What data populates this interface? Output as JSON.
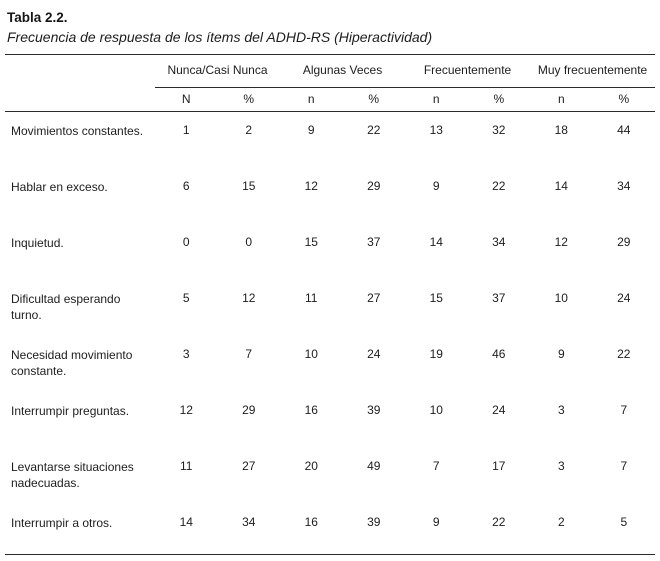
{
  "page": {
    "title": "Tabla 2.2.",
    "subtitle": "Frecuencia de respuesta de los ítems del ADHD-RS (Hiperactividad)"
  },
  "table": {
    "column_groups": [
      {
        "label": "Nunca/Casi Nunca",
        "sub": [
          "N",
          "%"
        ]
      },
      {
        "label": "Algunas Veces",
        "sub": [
          "n",
          "%"
        ]
      },
      {
        "label": "Frecuentemente",
        "sub": [
          "n",
          "%"
        ]
      },
      {
        "label": "Muy frecuentemente",
        "sub": [
          "n",
          "%"
        ]
      }
    ],
    "rows": [
      {
        "label": "Movimientos constantes.",
        "values": [
          1,
          2,
          9,
          22,
          13,
          32,
          18,
          44
        ]
      },
      {
        "label": "Hablar en exceso.",
        "values": [
          6,
          15,
          12,
          29,
          9,
          22,
          14,
          34
        ]
      },
      {
        "label": "Inquietud.",
        "values": [
          0,
          0,
          15,
          37,
          14,
          34,
          12,
          29
        ]
      },
      {
        "label": "Dificultad esperando turno.",
        "values": [
          5,
          12,
          11,
          27,
          15,
          37,
          10,
          24
        ]
      },
      {
        "label": "Necesidad movimiento constante.",
        "values": [
          3,
          7,
          10,
          24,
          19,
          46,
          9,
          22
        ]
      },
      {
        "label": "Interrumpir preguntas.",
        "values": [
          12,
          29,
          16,
          39,
          10,
          24,
          3,
          7
        ]
      },
      {
        "label": "Levantarse situaciones nadecuadas.",
        "values": [
          11,
          27,
          20,
          49,
          7,
          17,
          3,
          7
        ]
      },
      {
        "label": "Interrumpir a otros.",
        "values": [
          14,
          34,
          16,
          39,
          9,
          22,
          2,
          5
        ]
      }
    ],
    "text_color": "#1d1d1d",
    "rule_color": "#2b2b2b"
  }
}
